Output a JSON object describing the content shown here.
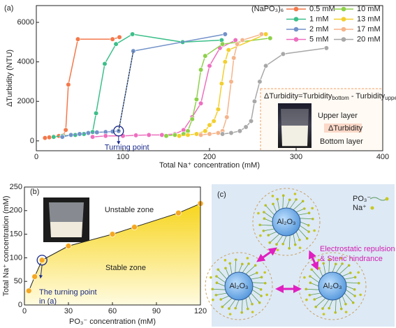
{
  "chart_data": [
    {
      "type": "line",
      "panel_label": "(a)",
      "x_label": "Total Na⁺ concentration (mM)",
      "y_label": "ΔTurbidity (NTU)",
      "xlim": [
        0,
        400
      ],
      "xticks": [
        0,
        100,
        200,
        300,
        400
      ],
      "ylim": [
        -500,
        6850
      ],
      "yticks": [
        0,
        2000,
        4000,
        6000
      ],
      "legend_title": "(NaPO₃)₆",
      "legend_position": "top-right",
      "annotations": [
        "Turning point"
      ],
      "inset": {
        "equation": [
          "ΔTurbidity=Turbidity",
          "bottom",
          " - Turbidity",
          "upper"
        ],
        "labels": [
          "Upper layer",
          "ΔTurbidity",
          "Bottom layer"
        ]
      },
      "series": [
        {
          "name": "0.5 mM",
          "color": "#f4784a",
          "x": [
            10,
            15,
            20,
            26,
            31,
            34,
            37,
            48,
            88,
            96
          ],
          "values": [
            150,
            180,
            220,
            250,
            280,
            550,
            2850,
            5150,
            5150,
            5250
          ]
        },
        {
          "name": "1 mM",
          "color": "#3cbf8a",
          "x": [
            20,
            30,
            45,
            55,
            60,
            65,
            69,
            79,
            92,
            111,
            169,
            214
          ],
          "values": [
            200,
            250,
            300,
            350,
            400,
            450,
            1400,
            3900,
            4900,
            5400,
            5000,
            5100
          ]
        },
        {
          "name": "2 mM",
          "color": "#7292c9",
          "x": [
            30,
            40,
            50,
            60,
            70,
            80,
            88,
            95,
            112,
            218
          ],
          "values": [
            200,
            300,
            350,
            400,
            430,
            450,
            470,
            500,
            4550,
            5400
          ]
        },
        {
          "name": "5 mM",
          "color": "#ee6fbf",
          "x": [
            65,
            80,
            100,
            115,
            130,
            145,
            160,
            170,
            180,
            190,
            200,
            212,
            230
          ],
          "values": [
            200,
            250,
            250,
            280,
            300,
            300,
            350,
            550,
            1200,
            1900,
            3800,
            4700,
            5100
          ]
        },
        {
          "name": "10 mM",
          "color": "#8dd14a",
          "x": [
            150,
            160,
            170,
            175,
            180,
            185,
            190,
            195,
            215,
            270
          ],
          "values": [
            250,
            300,
            350,
            500,
            1100,
            2100,
            3600,
            4300,
            4900,
            5200
          ]
        },
        {
          "name": "13 mM",
          "color": "#f2cf2e",
          "x": [
            165,
            175,
            185,
            195,
            200,
            205,
            210,
            214,
            218,
            222,
            265
          ],
          "values": [
            250,
            300,
            350,
            500,
            800,
            1000,
            1600,
            2900,
            4000,
            4600,
            5400
          ]
        },
        {
          "name": "17 mM",
          "color": "#f5b48a",
          "x": [
            190,
            200,
            210,
            215,
            220,
            225,
            228,
            232,
            238,
            260
          ],
          "values": [
            300,
            350,
            400,
            500,
            1200,
            3000,
            4200,
            4900,
            5100,
            5400
          ]
        },
        {
          "name": "20 mM",
          "color": "#a8a8a8",
          "x": [
            215,
            225,
            235,
            242,
            248,
            252,
            258,
            265,
            285,
            335
          ],
          "values": [
            350,
            400,
            500,
            700,
            1000,
            2000,
            3000,
            3800,
            4400,
            4700
          ]
        }
      ]
    },
    {
      "type": "area",
      "panel_label": "(b)",
      "x_label": "PO₃⁻ concentration (mM)",
      "y_label": "Total Na⁺ concentration (mM)",
      "xlim": [
        0,
        120
      ],
      "xticks": [
        0,
        30,
        60,
        90,
        120
      ],
      "ylim": [
        0,
        250
      ],
      "yticks": [
        0,
        50,
        100,
        150,
        200,
        250
      ],
      "annotations": [
        "Unstable zone",
        "Stable zone",
        "The turning point",
        "in (a)"
      ],
      "color": "#f5d21e",
      "marker_color": "#f5a623",
      "x": [
        3,
        7,
        12,
        30,
        60,
        75,
        105,
        120
      ],
      "values": [
        30,
        60,
        95,
        125,
        150,
        165,
        195,
        215
      ]
    }
  ],
  "diagram": {
    "panel_label": "(c)",
    "legend": [
      "PO₃⁻",
      "Na⁺"
    ],
    "particles": [
      "Al₂O₃",
      "Al₂O₃",
      "Al₂O₃"
    ],
    "caption": [
      "Electrostatic repulsion",
      "& Steric hindrance"
    ]
  }
}
